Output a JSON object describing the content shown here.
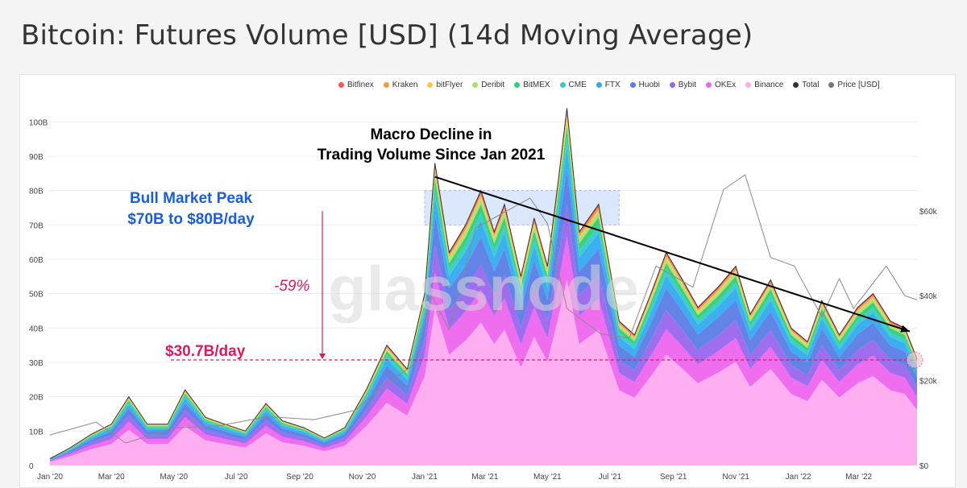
{
  "title": "Bitcoin: Futures Volume [USD] (14d Moving Average)",
  "watermark": "glassnode",
  "legend": [
    {
      "name": "Bitfinex",
      "color": "#f05a5a"
    },
    {
      "name": "Kraken",
      "color": "#f29a3c"
    },
    {
      "name": "bitFlyer",
      "color": "#f5c84c"
    },
    {
      "name": "Deribit",
      "color": "#a6e36b"
    },
    {
      "name": "BitMEX",
      "color": "#33cc77"
    },
    {
      "name": "CME",
      "color": "#33cccc"
    },
    {
      "name": "FTX",
      "color": "#33aaee"
    },
    {
      "name": "Huobi",
      "color": "#5b7de6"
    },
    {
      "name": "Bybit",
      "color": "#9966ee"
    },
    {
      "name": "OKEx",
      "color": "#ee66ee"
    },
    {
      "name": "Binance",
      "color": "#ffaaf0"
    },
    {
      "name": "Total",
      "color": "#333333"
    },
    {
      "name": "Price [USD]",
      "color": "#777777"
    }
  ],
  "annotations": {
    "macro_line1": "Macro Decline in",
    "macro_line2": "Trading Volume Since Jan 2021",
    "bull_line1": "Bull Market Peak",
    "bull_line2": "$70B to $80B/day",
    "drop": "-59%",
    "current": "$30.7B/day"
  },
  "chart_data": {
    "type": "area",
    "title": "Bitcoin: Futures Volume [USD] (14d Moving Average)",
    "x_ticks": [
      "Jan '20",
      "Mar '20",
      "May '20",
      "Jul '20",
      "Sep '20",
      "Nov '20",
      "Jan '21",
      "Mar '21",
      "May '21",
      "Jul '21",
      "Sep '21",
      "Nov '21",
      "Jan '22",
      "Mar '22"
    ],
    "y_ticks": [
      "0",
      "10B",
      "20B",
      "30B",
      "40B",
      "50B",
      "60B",
      "70B",
      "80B",
      "90B",
      "100B"
    ],
    "y2_ticks": [
      "$0",
      "$20k",
      "$40k",
      "$60k"
    ],
    "ylim": [
      0,
      105
    ],
    "y2lim": [
      0,
      85000
    ],
    "x_range": [
      "2020-01-01",
      "2022-04-27"
    ],
    "total_volume": [
      {
        "date": "2020-01-01",
        "value": 2
      },
      {
        "date": "2020-01-20",
        "value": 5
      },
      {
        "date": "2020-02-10",
        "value": 9
      },
      {
        "date": "2020-03-01",
        "value": 12
      },
      {
        "date": "2020-03-18",
        "value": 20
      },
      {
        "date": "2020-04-05",
        "value": 12
      },
      {
        "date": "2020-04-25",
        "value": 12
      },
      {
        "date": "2020-05-12",
        "value": 22
      },
      {
        "date": "2020-06-01",
        "value": 14
      },
      {
        "date": "2020-06-20",
        "value": 12
      },
      {
        "date": "2020-07-10",
        "value": 10
      },
      {
        "date": "2020-07-30",
        "value": 18
      },
      {
        "date": "2020-08-15",
        "value": 13
      },
      {
        "date": "2020-09-05",
        "value": 11
      },
      {
        "date": "2020-09-25",
        "value": 8
      },
      {
        "date": "2020-10-15",
        "value": 11
      },
      {
        "date": "2020-11-05",
        "value": 22
      },
      {
        "date": "2020-11-25",
        "value": 35
      },
      {
        "date": "2020-12-15",
        "value": 28
      },
      {
        "date": "2021-01-01",
        "value": 50
      },
      {
        "date": "2021-01-11",
        "value": 88
      },
      {
        "date": "2021-01-25",
        "value": 62
      },
      {
        "date": "2021-02-10",
        "value": 70
      },
      {
        "date": "2021-02-25",
        "value": 80
      },
      {
        "date": "2021-03-10",
        "value": 68
      },
      {
        "date": "2021-03-20",
        "value": 76
      },
      {
        "date": "2021-04-05",
        "value": 55
      },
      {
        "date": "2021-04-18",
        "value": 72
      },
      {
        "date": "2021-05-01",
        "value": 58
      },
      {
        "date": "2021-05-12",
        "value": 84
      },
      {
        "date": "2021-05-20",
        "value": 104
      },
      {
        "date": "2021-06-01",
        "value": 68
      },
      {
        "date": "2021-06-20",
        "value": 76
      },
      {
        "date": "2021-07-10",
        "value": 42
      },
      {
        "date": "2021-07-25",
        "value": 38
      },
      {
        "date": "2021-08-10",
        "value": 50
      },
      {
        "date": "2021-08-25",
        "value": 62
      },
      {
        "date": "2021-09-10",
        "value": 54
      },
      {
        "date": "2021-09-25",
        "value": 46
      },
      {
        "date": "2021-10-15",
        "value": 52
      },
      {
        "date": "2021-11-01",
        "value": 58
      },
      {
        "date": "2021-11-15",
        "value": 44
      },
      {
        "date": "2021-12-05",
        "value": 54
      },
      {
        "date": "2021-12-25",
        "value": 40
      },
      {
        "date": "2022-01-10",
        "value": 36
      },
      {
        "date": "2022-01-24",
        "value": 48
      },
      {
        "date": "2022-02-10",
        "value": 38
      },
      {
        "date": "2022-02-28",
        "value": 46
      },
      {
        "date": "2022-03-15",
        "value": 50
      },
      {
        "date": "2022-04-01",
        "value": 42
      },
      {
        "date": "2022-04-15",
        "value": 40
      },
      {
        "date": "2022-04-27",
        "value": 31
      }
    ],
    "price_usd": [
      {
        "date": "2020-01-01",
        "value": 7200
      },
      {
        "date": "2020-02-15",
        "value": 10200
      },
      {
        "date": "2020-03-15",
        "value": 5300
      },
      {
        "date": "2020-05-01",
        "value": 8800
      },
      {
        "date": "2020-06-15",
        "value": 9400
      },
      {
        "date": "2020-08-01",
        "value": 11500
      },
      {
        "date": "2020-09-15",
        "value": 10800
      },
      {
        "date": "2020-10-25",
        "value": 13000
      },
      {
        "date": "2020-11-20",
        "value": 18500
      },
      {
        "date": "2020-12-20",
        "value": 23500
      },
      {
        "date": "2021-01-08",
        "value": 40000
      },
      {
        "date": "2021-01-25",
        "value": 32000
      },
      {
        "date": "2021-02-20",
        "value": 56000
      },
      {
        "date": "2021-03-15",
        "value": 59000
      },
      {
        "date": "2021-04-14",
        "value": 63000
      },
      {
        "date": "2021-05-01",
        "value": 57000
      },
      {
        "date": "2021-05-20",
        "value": 37000
      },
      {
        "date": "2021-06-22",
        "value": 31000
      },
      {
        "date": "2021-07-20",
        "value": 30000
      },
      {
        "date": "2021-08-15",
        "value": 47000
      },
      {
        "date": "2021-09-20",
        "value": 42000
      },
      {
        "date": "2021-10-20",
        "value": 65000
      },
      {
        "date": "2021-11-10",
        "value": 68500
      },
      {
        "date": "2021-12-05",
        "value": 49000
      },
      {
        "date": "2021-12-28",
        "value": 47000
      },
      {
        "date": "2022-01-24",
        "value": 35000
      },
      {
        "date": "2022-02-10",
        "value": 44000
      },
      {
        "date": "2022-02-24",
        "value": 37000
      },
      {
        "date": "2022-03-28",
        "value": 47000
      },
      {
        "date": "2022-04-15",
        "value": 40000
      },
      {
        "date": "2022-04-27",
        "value": 39000
      }
    ],
    "exchange_share": [
      {
        "name": "Binance",
        "color": "#ffaaf0",
        "share": 0.52
      },
      {
        "name": "OKEx",
        "color": "#ee66ee",
        "share": 0.12
      },
      {
        "name": "Bybit",
        "color": "#9966ee",
        "share": 0.09
      },
      {
        "name": "Huobi",
        "color": "#5b7de6",
        "share": 0.1
      },
      {
        "name": "FTX",
        "color": "#33aaee",
        "share": 0.06
      },
      {
        "name": "CME",
        "color": "#33cccc",
        "share": 0.03
      },
      {
        "name": "BitMEX",
        "color": "#33cc77",
        "share": 0.03
      },
      {
        "name": "Deribit",
        "color": "#a6e36b",
        "share": 0.02
      },
      {
        "name": "bitFlyer",
        "color": "#f5c84c",
        "share": 0.01
      },
      {
        "name": "Kraken",
        "color": "#f29a3c",
        "share": 0.01
      },
      {
        "name": "Bitfinex",
        "color": "#f05a5a",
        "share": 0.01
      }
    ],
    "bull_market_band": [
      70,
      80
    ],
    "bull_band_dates": [
      "2021-01-01",
      "2021-07-10"
    ],
    "reference_level": 30.7,
    "trend_line": [
      {
        "date": "2021-01-11",
        "value": 84
      },
      {
        "date": "2022-04-20",
        "value": 39
      }
    ]
  }
}
